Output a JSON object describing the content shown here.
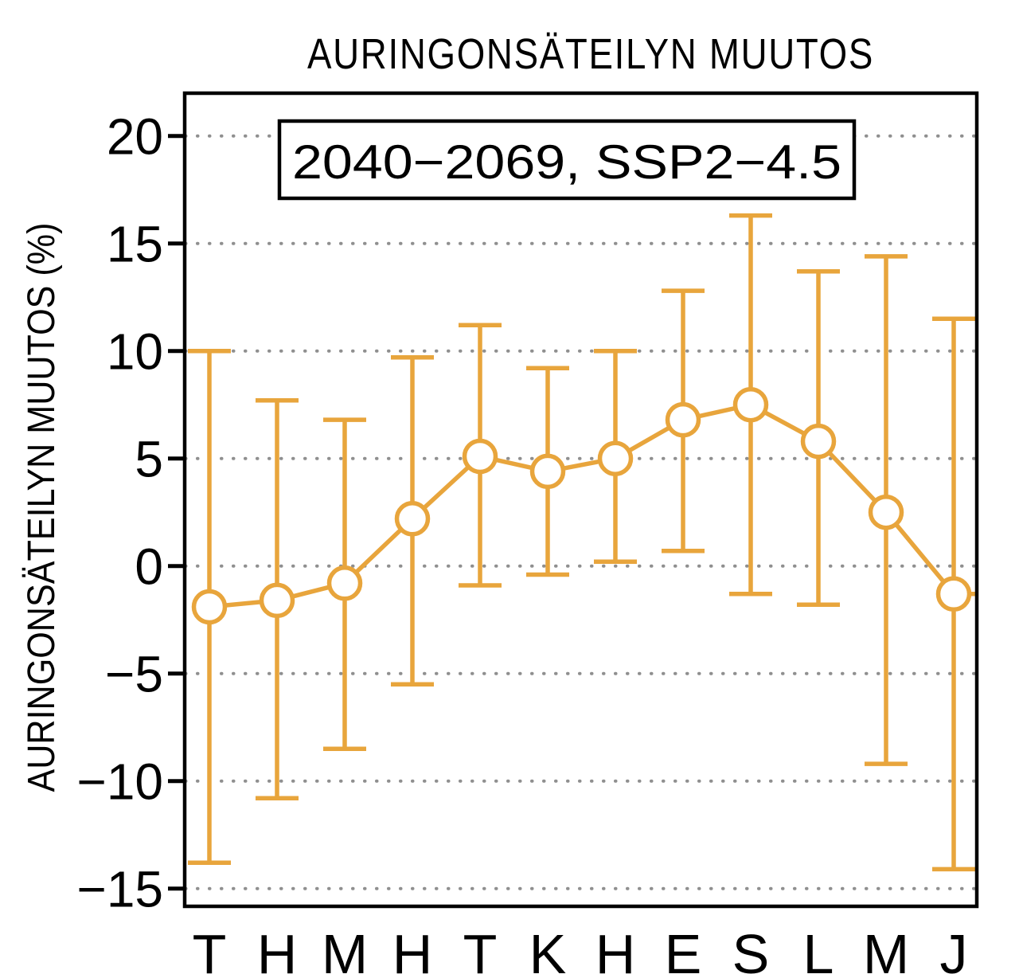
{
  "chart_data": {
    "type": "line",
    "title": "AURINGONSÄTEILYN MUUTOS",
    "annotation": "2040−2069, SSP2−4.5",
    "ylabel": "AURINGONSÄTEILYN MUUTOS (%)",
    "xlabel": "",
    "categories": [
      "T",
      "H",
      "M",
      "H",
      "T",
      "K",
      "H",
      "E",
      "S",
      "L",
      "M",
      "J"
    ],
    "series": [
      {
        "values": [
          -1.9,
          -1.6,
          -0.8,
          2.2,
          5.1,
          4.4,
          5.0,
          6.8,
          7.5,
          5.8,
          2.5,
          -1.3
        ],
        "err_low": [
          -13.8,
          -10.8,
          -8.5,
          -5.5,
          -0.9,
          -0.4,
          0.2,
          0.7,
          -1.3,
          -1.8,
          -9.2,
          -14.1
        ],
        "err_high": [
          10.0,
          7.7,
          6.8,
          9.7,
          11.2,
          9.2,
          10.0,
          12.8,
          16.3,
          13.7,
          14.4,
          11.5
        ]
      }
    ],
    "yticks": [
      20,
      15,
      10,
      5,
      0,
      -5,
      -10,
      -15
    ],
    "ylim": [
      -15.9,
      22.1
    ],
    "grid": "horizontal-dotted",
    "legend": "none",
    "marker": "open-circle",
    "colors": {
      "line": "#E8A53C",
      "grid": "#8F8F8F",
      "axis": "#000000",
      "marker_fill": "#FFFFFF",
      "text": "#000000"
    }
  }
}
